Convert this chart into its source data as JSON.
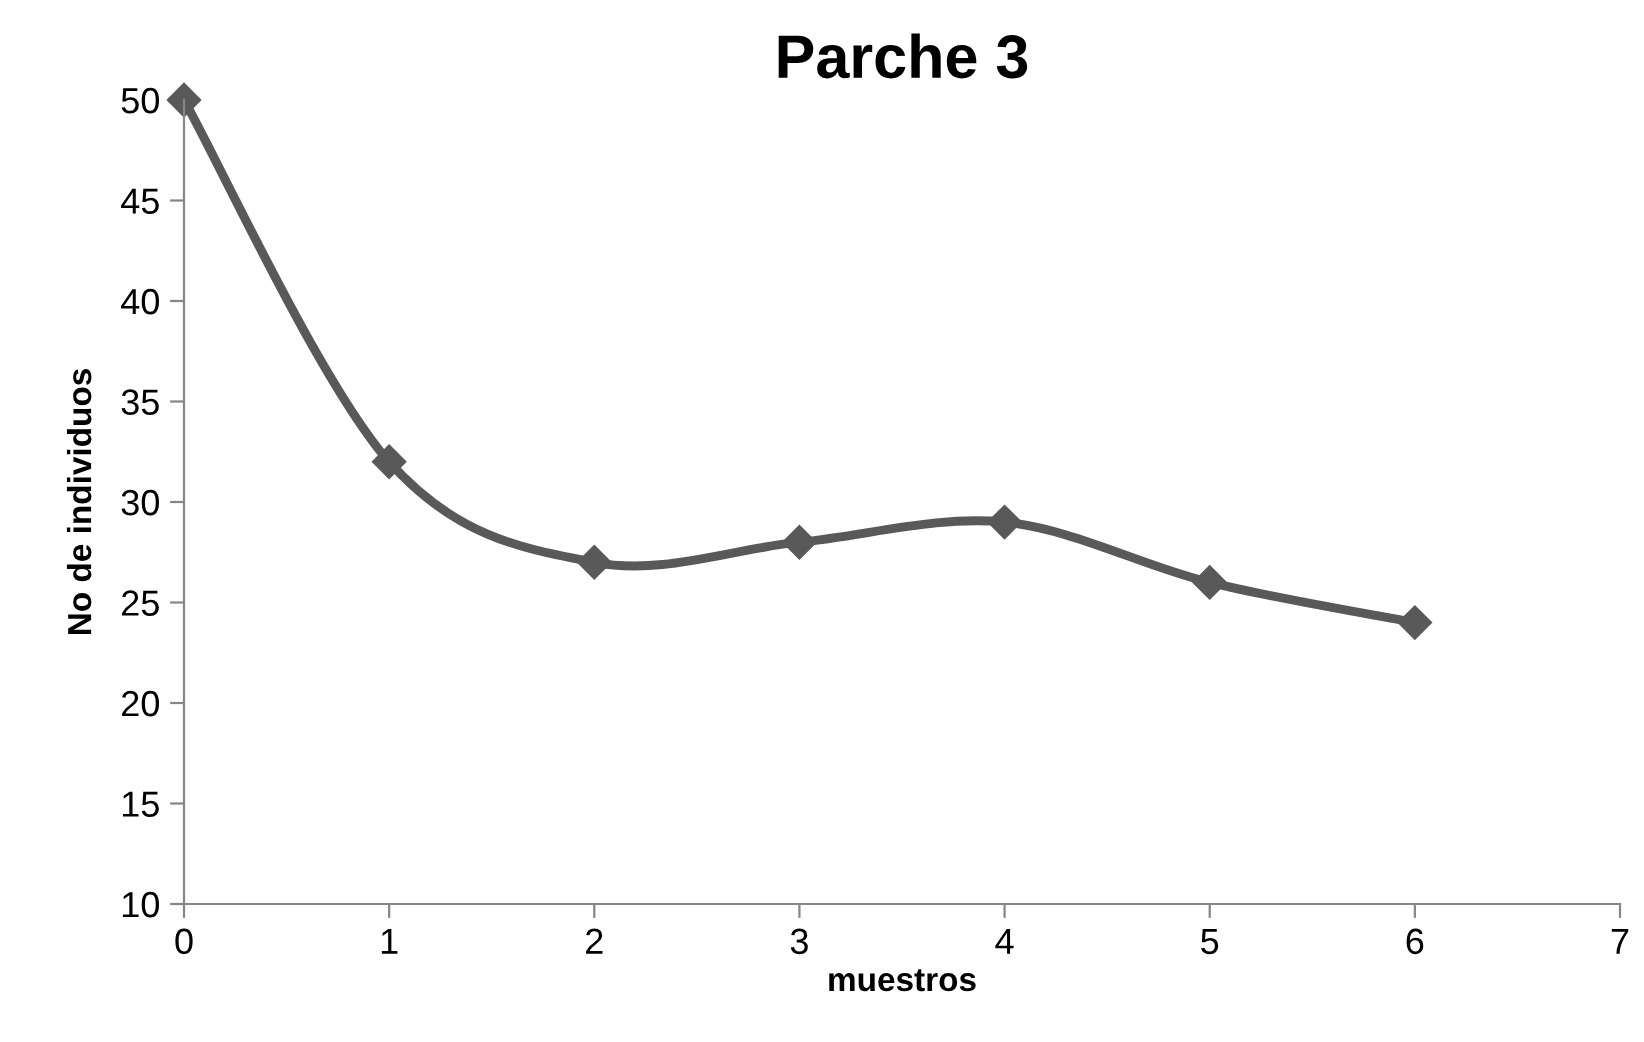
{
  "chart_data": {
    "type": "line",
    "title": "Parche 3",
    "xlabel": "muestros",
    "ylabel": "No de individuos",
    "x": [
      0,
      1,
      2,
      3,
      4,
      5,
      6
    ],
    "series": [
      {
        "color": "#595959",
        "values": [
          50,
          32,
          27,
          28,
          29,
          26,
          24
        ]
      }
    ],
    "xlim": [
      0,
      7
    ],
    "xticks": [
      0,
      1,
      2,
      3,
      4,
      5,
      6,
      7
    ],
    "ylim": [
      10,
      50
    ],
    "yticks": [
      10,
      15,
      20,
      25,
      30,
      35,
      40,
      45,
      50
    ],
    "grid": false,
    "legend": false,
    "marker": "diamond",
    "line_style": "solid"
  }
}
